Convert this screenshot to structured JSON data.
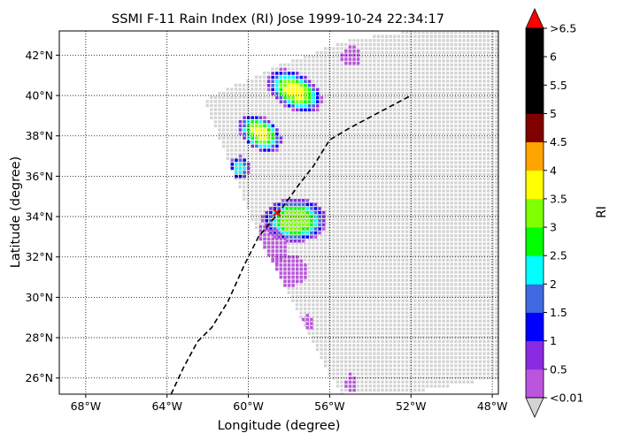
{
  "chart_data": {
    "type": "heatmap",
    "title": "SSMI F-11 Rain Index (RI) Jose 1999-10-24 22:34:17",
    "xlabel": "Longitude (degree)",
    "ylabel": "Latitude (degree)",
    "xlim": [
      -69.3,
      -47.7
    ],
    "ylim": [
      25.2,
      43.2
    ],
    "grid": true,
    "x_ticks": [
      {
        "value": -68,
        "label": "68°W"
      },
      {
        "value": -64,
        "label": "64°W"
      },
      {
        "value": -60,
        "label": "60°W"
      },
      {
        "value": -56,
        "label": "56°W"
      },
      {
        "value": -52,
        "label": "52°W"
      },
      {
        "value": -48,
        "label": "48°W"
      }
    ],
    "y_ticks": [
      {
        "value": 26,
        "label": "26°N"
      },
      {
        "value": 28,
        "label": "28°N"
      },
      {
        "value": 30,
        "label": "30°N"
      },
      {
        "value": 32,
        "label": "32°N"
      },
      {
        "value": 34,
        "label": "34°N"
      },
      {
        "value": 36,
        "label": "36°N"
      },
      {
        "value": 38,
        "label": "38°N"
      },
      {
        "value": 40,
        "label": "40°N"
      },
      {
        "value": 42,
        "label": "42°N"
      }
    ],
    "no_rain_color": "#d3d3d3",
    "swath_outline": [
      [
        -62.2,
        39.8
      ],
      [
        -58.5,
        41.5
      ],
      [
        -55,
        42.8
      ],
      [
        -52,
        43.2
      ],
      [
        -47.7,
        43.2
      ],
      [
        -47.7,
        26.0
      ],
      [
        -52,
        25.3
      ],
      [
        -55.5,
        25.2
      ],
      [
        -59.5,
        33.0
      ]
    ],
    "rain_cells": [
      {
        "lon": -57.8,
        "lat": 40.3,
        "rx": 1.5,
        "ry": 0.9,
        "angle": 30,
        "value": 3.6
      },
      {
        "lon": -59.5,
        "lat": 38.2,
        "rx": 1.2,
        "ry": 0.8,
        "angle": 35,
        "value": 3.6
      },
      {
        "lon": -57.8,
        "lat": 33.9,
        "rx": 1.6,
        "ry": 1.1,
        "angle": 0,
        "value": 3.4
      },
      {
        "lon": -60.5,
        "lat": 36.5,
        "rx": 0.5,
        "ry": 0.6,
        "angle": 0,
        "value": 2.4
      },
      {
        "lon": -59.3,
        "lat": 32.6,
        "rx": 1.2,
        "ry": 1.0,
        "angle": 0,
        "value": 0.3
      },
      {
        "lon": -58.2,
        "lat": 31.4,
        "rx": 1.1,
        "ry": 0.8,
        "angle": 0,
        "value": 0.3
      },
      {
        "lon": -57.2,
        "lat": 28.8,
        "rx": 0.4,
        "ry": 0.4,
        "angle": 0,
        "value": 0.3
      },
      {
        "lon": -55.0,
        "lat": 42.0,
        "rx": 0.5,
        "ry": 0.5,
        "angle": 0,
        "value": 0.3
      },
      {
        "lon": -55.0,
        "lat": 25.8,
        "rx": 0.3,
        "ry": 0.5,
        "angle": 0,
        "value": 0.3
      },
      {
        "lon": -61.0,
        "lat": 34.8,
        "rx": 0.6,
        "ry": 0.5,
        "angle": 0,
        "value": 0.3
      }
    ],
    "track": [
      [
        -63.8,
        25.2
      ],
      [
        -63.2,
        26.5
      ],
      [
        -62.5,
        27.8
      ],
      [
        -61.8,
        28.5
      ],
      [
        -61.0,
        29.8
      ],
      [
        -60.2,
        31.6
      ],
      [
        -59.5,
        33.0
      ],
      [
        -58.5,
        34.2
      ],
      [
        -57.5,
        35.6
      ],
      [
        -56.8,
        36.5
      ],
      [
        -56.0,
        37.8
      ],
      [
        -55.0,
        38.4
      ],
      [
        -53.5,
        39.2
      ],
      [
        -52.0,
        40.0
      ]
    ],
    "current_position": {
      "lon": -58.6,
      "lat": 34.2
    },
    "colorbar": {
      "label": "RI",
      "tick_labels": [
        "<0.01",
        "0.5",
        "1",
        "1.5",
        "2",
        "2.5",
        "3",
        "3.5",
        "4",
        "4.5",
        "5",
        "5.5",
        "6",
        ">6.5"
      ],
      "colors": [
        "#bb55dd",
        "#8a2be2",
        "#0000ff",
        "#4169e1",
        "#00ffff",
        "#00ff00",
        "#7fff00",
        "#ffff00",
        "#ffa500",
        "#800000",
        "#000000",
        "#000000",
        "#000000"
      ],
      "over_color": "#ff0000",
      "under_color": "#d3d3d3"
    }
  }
}
